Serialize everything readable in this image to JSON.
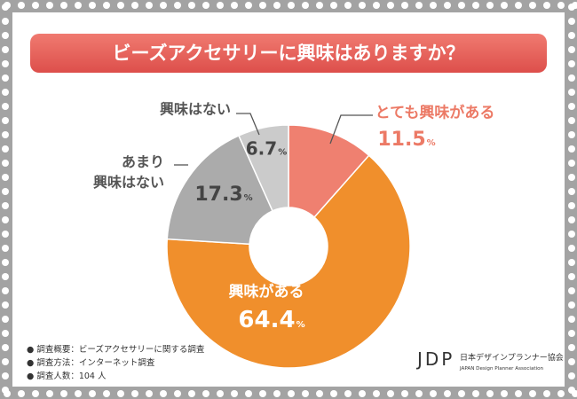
{
  "title": "ビーズアクセサリーに興味はありますか？",
  "chart_data": {
    "type": "donut",
    "categories": [
      "とても興味がある",
      "興味がある",
      "あまり\n興味はない",
      "興味はない"
    ],
    "values": [
      11.5,
      64.4,
      17.3,
      6.7
    ],
    "unit": "%",
    "colors": [
      "#ef8070",
      "#f08f2c",
      "#ababab",
      "#cbcbcb"
    ]
  },
  "notes": [
    "調査概要：ビーズアクセサリーに関する調査",
    "調査方法：インターネット調査",
    "調査人数：104 人"
  ],
  "logo": {
    "mark": "JDP",
    "name": "日本デザインプランナー協会",
    "english": "JAPAN Design Planner Association"
  }
}
